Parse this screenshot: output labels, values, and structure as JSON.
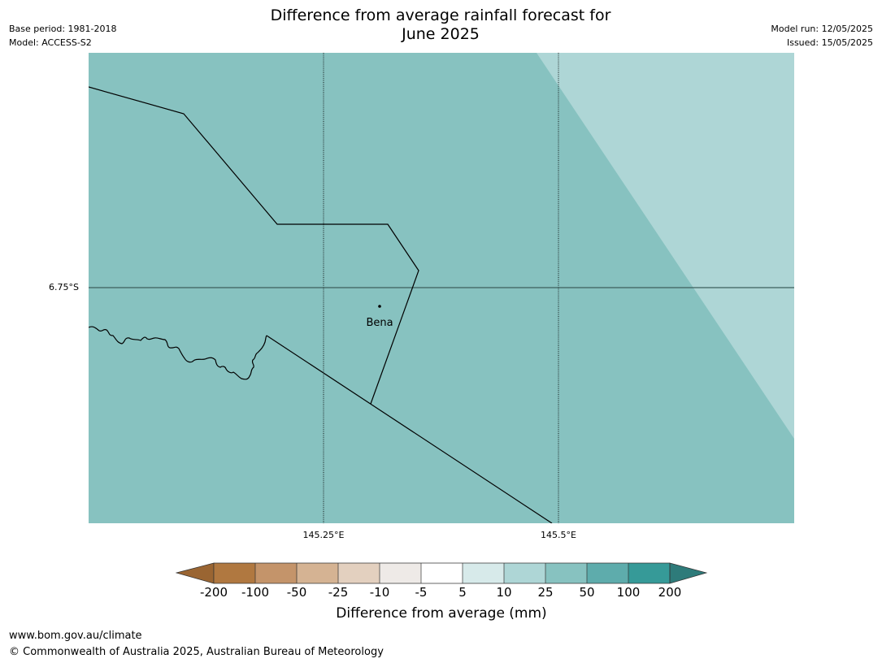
{
  "header": {
    "title_line1": "Difference from average rainfall forecast for",
    "title_line2": "June 2025",
    "base_period": "Base period: 1981-2018",
    "model": "Model: ACCESS-S2",
    "model_run": "Model run: 12/05/2025",
    "issued": "Issued: 15/05/2025"
  },
  "map": {
    "latitude_labels": [
      "6.75°S"
    ],
    "longitude_labels": [
      "145.25°E",
      "145.5°E"
    ],
    "place_label": "Bena",
    "region_colors": {
      "main": "#87c2c0",
      "corner": "#aed6d6"
    }
  },
  "colorbar": {
    "title": "Difference from average (mm)",
    "ticks": [
      "-200",
      "-100",
      "-50",
      "-25",
      "-10",
      "-5",
      "5",
      "10",
      "25",
      "50",
      "100",
      "200"
    ],
    "colors": [
      "#9a6532",
      "#b07840",
      "#c4946a",
      "#d5b393",
      "#e3d0bf",
      "#eeeae7",
      "#ffffff",
      "#d7eaea",
      "#aed6d6",
      "#87c2c0",
      "#5eacac",
      "#369a98",
      "#2e7b7a"
    ]
  },
  "footer": {
    "url": "www.bom.gov.au/climate",
    "copyright": "© Commonwealth of Australia 2025, Australian Bureau of Meteorology"
  }
}
